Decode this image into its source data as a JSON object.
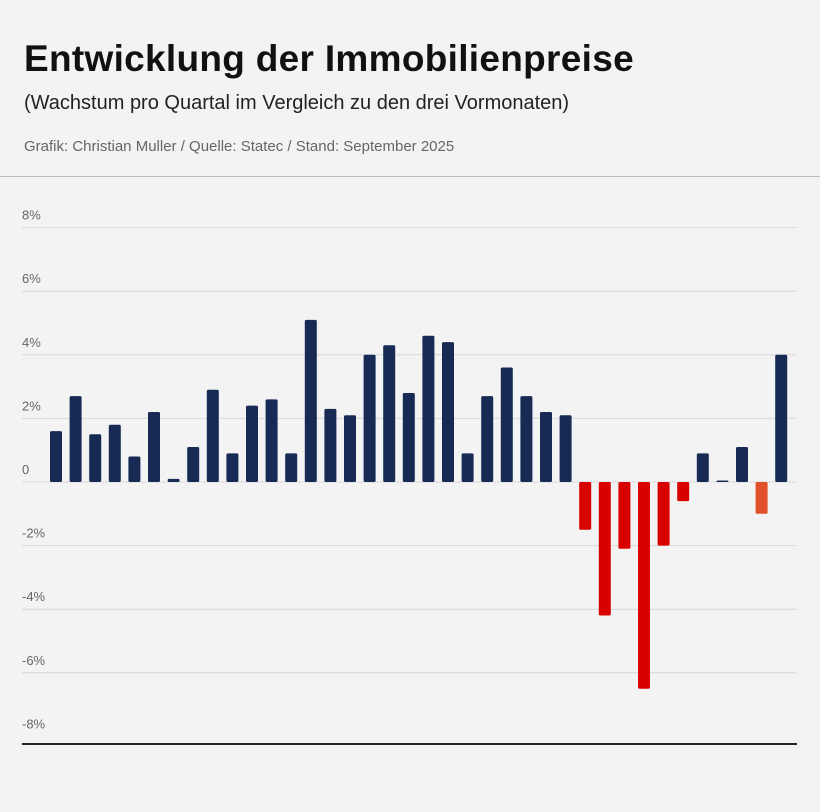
{
  "header": {
    "title": "Entwicklung der Immobilienpreise",
    "subtitle": "(Wachstum pro Quartal im Vergleich zu den drei Vormonaten)",
    "source": "Grafik: Christian Muller / Quelle: Statec / Stand: September 2025"
  },
  "colors": {
    "positive": "#172a54",
    "negative": "#d90000",
    "latest_negative": "#e0502a",
    "grid": "#d8d8d8",
    "axis": "#222222"
  },
  "chart_data": {
    "type": "bar",
    "title": "Entwicklung der Immobilienpreise",
    "subtitle": "(Wachstum pro Quartal im Vergleich zu den drei Vormonaten)",
    "xlabel": "",
    "ylabel": "",
    "ylim": [
      -8,
      8
    ],
    "yticks": [
      8,
      6,
      4,
      2,
      0,
      -2,
      -4,
      -6,
      -8
    ],
    "ytick_labels": [
      "8%",
      "6%",
      "4%",
      "2%",
      "0",
      "-2%",
      "-4%",
      "-6%",
      "-8%"
    ],
    "grid": true,
    "values": [
      1.6,
      2.7,
      1.5,
      1.8,
      0.8,
      2.2,
      0.1,
      1.1,
      2.9,
      0.9,
      2.4,
      2.6,
      0.9,
      5.1,
      2.3,
      2.1,
      4.0,
      4.3,
      2.8,
      4.6,
      4.4,
      0.9,
      2.7,
      3.6,
      2.7,
      2.2,
      2.1,
      -1.5,
      -4.2,
      -2.1,
      -6.5,
      -2.0,
      -0.6,
      0.9,
      0.0,
      1.1,
      -1.0,
      4.0
    ],
    "highlight_index": 36
  }
}
